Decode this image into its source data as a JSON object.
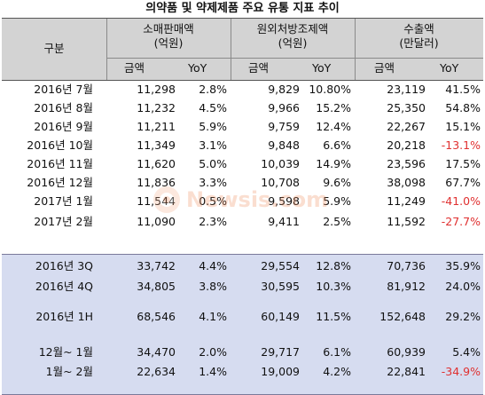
{
  "title": "의약품 및 약제제품 주요 유통 지표 추이",
  "header": {
    "category": "구분",
    "groups": [
      {
        "name": "소매판매액",
        "unit": "(억원)"
      },
      {
        "name": "원외처방조제액",
        "unit": "(억원)"
      },
      {
        "name": "수출액",
        "unit": "(만달러)"
      }
    ],
    "amount": "금액",
    "yoy": "YoY"
  },
  "monthly_rows": [
    {
      "label": "2016년  7월",
      "v": [
        "11,298",
        "2.8%",
        "9,829",
        "10.80%",
        "23,119",
        "41.5%"
      ],
      "neg": [
        false,
        false,
        false,
        false,
        false,
        false
      ]
    },
    {
      "label": "2016년  8월",
      "v": [
        "11,232",
        "4.5%",
        "9,966",
        "15.2%",
        "25,350",
        "54.8%"
      ],
      "neg": [
        false,
        false,
        false,
        false,
        false,
        false
      ]
    },
    {
      "label": "2016년  9월",
      "v": [
        "11,211",
        "5.9%",
        "9,759",
        "12.4%",
        "22,267",
        "15.1%"
      ],
      "neg": [
        false,
        false,
        false,
        false,
        false,
        false
      ]
    },
    {
      "label": "2016년 10월",
      "v": [
        "11,349",
        "3.1%",
        "9,848",
        "6.6%",
        "20,218",
        "-13.1%"
      ],
      "neg": [
        false,
        false,
        false,
        false,
        false,
        true
      ]
    },
    {
      "label": "2016년 11월",
      "v": [
        "11,620",
        "5.0%",
        "10,039",
        "14.9%",
        "23,596",
        "17.5%"
      ],
      "neg": [
        false,
        false,
        false,
        false,
        false,
        false
      ]
    },
    {
      "label": "2016년 12월",
      "v": [
        "11,836",
        "3.3%",
        "10,708",
        "9.6%",
        "38,098",
        "67.7%"
      ],
      "neg": [
        false,
        false,
        false,
        false,
        false,
        false
      ]
    },
    {
      "label": "2017년  1월",
      "v": [
        "11,544",
        "0.5%",
        "9,598",
        "5.9%",
        "11,249",
        "-41.0%"
      ],
      "neg": [
        false,
        false,
        false,
        false,
        false,
        true
      ]
    },
    {
      "label": "2017년  2월",
      "v": [
        "11,090",
        "2.3%",
        "9,411",
        "2.5%",
        "11,592",
        "-27.7%"
      ],
      "neg": [
        false,
        false,
        false,
        false,
        false,
        true
      ]
    }
  ],
  "summary_rows": [
    {
      "label": "2016년 3Q",
      "v": [
        "33,742",
        "4.4%",
        "29,554",
        "12.8%",
        "70,736",
        "35.9%"
      ],
      "neg": [
        false,
        false,
        false,
        false,
        false,
        false
      ]
    },
    {
      "label": "2016년 4Q",
      "v": [
        "34,805",
        "3.8%",
        "30,595",
        "10.3%",
        "81,912",
        "24.0%"
      ],
      "neg": [
        false,
        false,
        false,
        false,
        false,
        false
      ]
    },
    {
      "label": "2016년 1H",
      "v": [
        "68,546",
        "4.1%",
        "60,149",
        "11.5%",
        "152,648",
        "29.2%"
      ],
      "neg": [
        false,
        false,
        false,
        false,
        false,
        false
      ]
    },
    {
      "label": "12월~ 1월",
      "v": [
        "34,470",
        "2.0%",
        "29,717",
        "6.1%",
        "60,939",
        "5.4%"
      ],
      "neg": [
        false,
        false,
        false,
        false,
        false,
        false
      ]
    },
    {
      "label": "1월~ 2월",
      "v": [
        "22,634",
        "1.4%",
        "19,009",
        "4.2%",
        "22,841",
        "-34.9%"
      ],
      "neg": [
        false,
        false,
        false,
        false,
        false,
        true
      ]
    }
  ],
  "watermark": {
    "text": "Newsis.com",
    "icon": "newsis-logo-icon",
    "color": "#f08a5a"
  }
}
